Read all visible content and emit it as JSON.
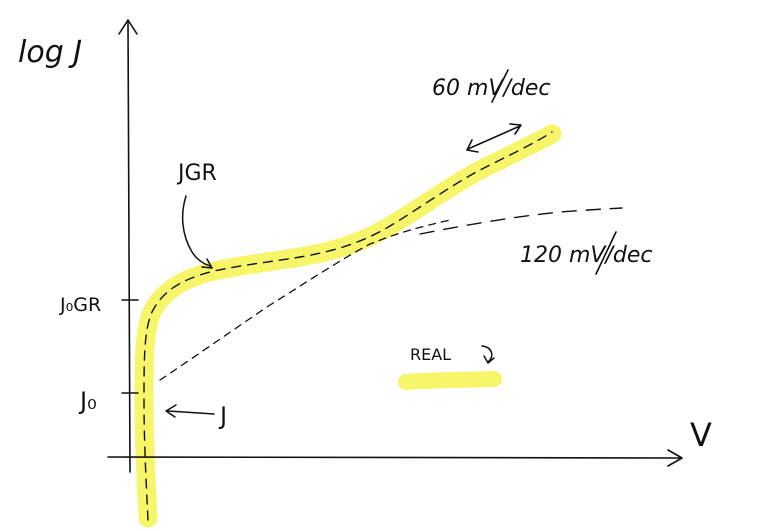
{
  "diagram": {
    "y_axis_label": "log J",
    "x_axis_label": "V",
    "tick_labels": {
      "j_ogr": "J₀GR",
      "j_o": "J₀"
    },
    "curve_labels": {
      "j_gr": "JGR",
      "j": "J",
      "slope_60": "60 mV/dec",
      "slope_120": "120 mV/dec"
    },
    "legend": {
      "label": "REAL"
    },
    "colors": {
      "ink": "#111111",
      "highlight": "#f7f56a"
    }
  }
}
